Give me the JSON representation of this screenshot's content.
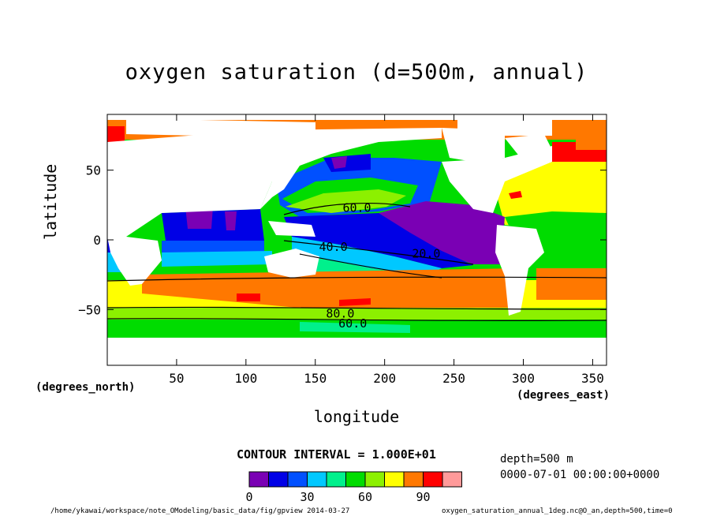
{
  "title": "oxygen saturation (d=500m, annual)",
  "y_axis": {
    "label": "latitude",
    "unit_label": "(degrees_north)",
    "ticks": [
      50,
      0,
      -50
    ]
  },
  "x_axis": {
    "label": "longitude",
    "unit_label": "(degrees_east)",
    "ticks": [
      50,
      100,
      150,
      200,
      250,
      300,
      350
    ]
  },
  "contour_interval_label": "CONTOUR INTERVAL = 1.000E+01",
  "info": {
    "depth": "depth=500 m",
    "time": "0000-07-01 00:00:00+0000"
  },
  "footer": {
    "left": "/home/ykawai/workspace/note_OModeling/basic_data/fig/gpview  2014-03-27",
    "right": "oxygen_saturation_annual_1deg.nc@O_an,depth=500,time=0"
  },
  "colorbar": {
    "colors": [
      "#7a00b4",
      "#0000e6",
      "#0050ff",
      "#00c8ff",
      "#00f08c",
      "#00dc00",
      "#8cf000",
      "#ffff00",
      "#ff7800",
      "#ff0000",
      "#ff9a9a"
    ],
    "tick_labels": [
      "0",
      "30",
      "60",
      "90"
    ]
  },
  "chart_data": {
    "type": "heatmap",
    "title": "oxygen saturation (d=500m, annual)",
    "xlabel": "longitude",
    "ylabel": "latitude",
    "xlim": [
      0,
      360
    ],
    "ylim": [
      -90,
      90
    ],
    "contour_interval": 10,
    "contour_labels": [
      {
        "text": "60.0",
        "lon": 180,
        "lat": 23
      },
      {
        "text": "40.0",
        "lon": 163,
        "lat": -5
      },
      {
        "text": "20.0",
        "lon": 230,
        "lat": -10
      },
      {
        "text": "80.0",
        "lon": 168,
        "lat": -53
      },
      {
        "text": "60.0",
        "lon": 177,
        "lat": -60
      }
    ],
    "levels": [
      0,
      10,
      20,
      30,
      40,
      50,
      60,
      70,
      80,
      90,
      100,
      110
    ]
  }
}
